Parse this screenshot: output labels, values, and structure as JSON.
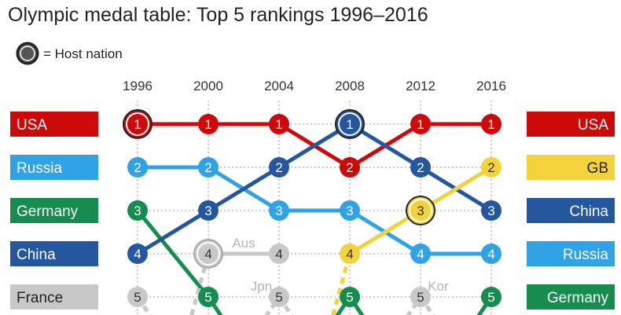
{
  "title": "Olympic medal table: Top 5 rankings 1996–2016",
  "legend": {
    "label": "= Host nation"
  },
  "chart_data": {
    "type": "bump",
    "title": "Olympic medal table: Top 5 rankings 1996–2016",
    "years": [
      "1996",
      "2000",
      "2004",
      "2008",
      "2012",
      "2016"
    ],
    "ranks": [
      1,
      2,
      3,
      4,
      5
    ],
    "series": [
      {
        "name": "USA",
        "color": "#cc0a0a",
        "ranks": [
          1,
          1,
          1,
          2,
          1,
          1
        ],
        "host": [
          0
        ]
      },
      {
        "name": "Russia",
        "color": "#2fa3e6",
        "ranks": [
          2,
          2,
          3,
          3,
          4,
          4
        ],
        "host": []
      },
      {
        "name": "Germany",
        "color": "#168c4e",
        "ranks": [
          3,
          5,
          null,
          5,
          null,
          5
        ],
        "host": []
      },
      {
        "name": "China",
        "color": "#24579e",
        "ranks": [
          4,
          3,
          2,
          1,
          2,
          3
        ],
        "host": [
          3
        ]
      },
      {
        "name": "France",
        "color": "#c8c8c8",
        "ranks": [
          5,
          null,
          null,
          null,
          null,
          null
        ],
        "host": []
      },
      {
        "name": "GB",
        "color": "#f2d33c",
        "ranks": [
          null,
          null,
          null,
          4,
          3,
          2
        ],
        "host": [
          4
        ]
      },
      {
        "name": "Aus",
        "color": "#c8c8c8",
        "ranks": [
          null,
          4,
          4,
          null,
          null,
          null
        ],
        "host": [
          1
        ]
      },
      {
        "name": "Jpn",
        "color": "#c8c8c8",
        "ranks": [
          null,
          null,
          5,
          null,
          null,
          null
        ],
        "host": []
      },
      {
        "name": "Kor",
        "color": "#c8c8c8",
        "ranks": [
          null,
          null,
          null,
          null,
          5,
          null
        ],
        "host": []
      }
    ],
    "inline_labels": [
      "Aus",
      "Jpn",
      "Kor"
    ],
    "left_labels": [
      {
        "rank": 1,
        "name": "USA"
      },
      {
        "rank": 2,
        "name": "Russia"
      },
      {
        "rank": 3,
        "name": "Germany"
      },
      {
        "rank": 4,
        "name": "China"
      },
      {
        "rank": 5,
        "name": "France"
      }
    ],
    "right_labels": [
      {
        "rank": 1,
        "name": "USA"
      },
      {
        "rank": 2,
        "name": "GB"
      },
      {
        "rank": 3,
        "name": "China"
      },
      {
        "rank": 4,
        "name": "Russia"
      },
      {
        "rank": 5,
        "name": "Germany"
      }
    ]
  }
}
